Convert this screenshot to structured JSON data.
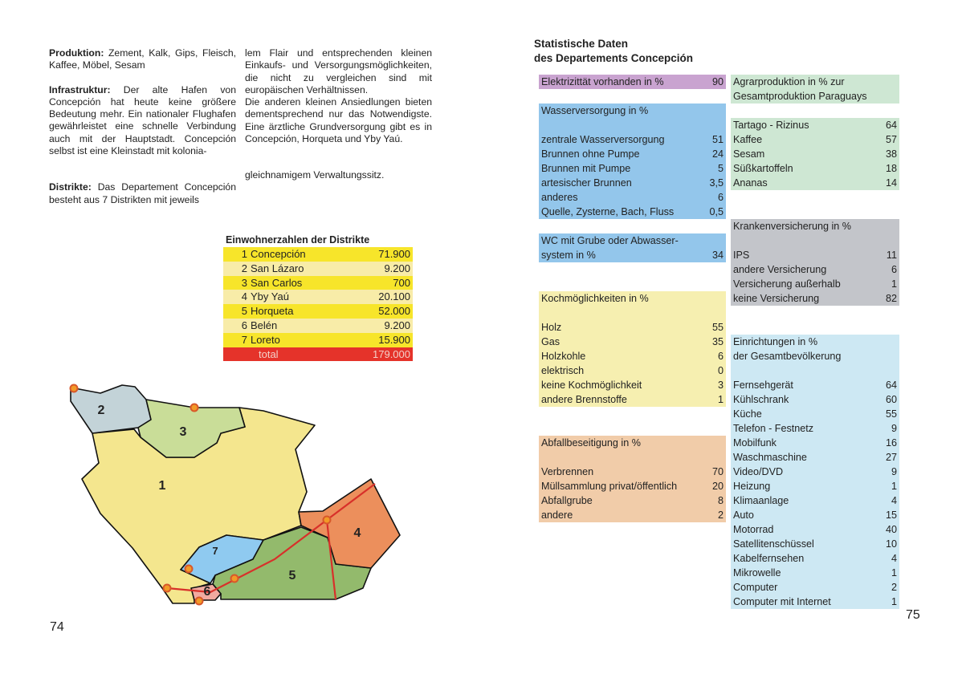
{
  "left_page": {
    "col1": {
      "produktion_label": "Produktion:",
      "produktion_text": " Zement, Kalk, Gips, Fleisch, Kaffee, Möbel, Sesam",
      "infrastruktur_label": "Infrastruktur:",
      "infrastruktur_text": " Der alte Hafen von Concepción hat heute keine größere Bedeutung mehr. Ein nationaler Flughafen gewährleistet eine schnelle Verbindung auch mit der Hauptstadt. Concepción selbst ist eine Kleinstadt mit kolonia-",
      "distrikte_label": "Distrikte:",
      "distrikte_text": " Das Departement Concepción besteht aus 7 Distrikten mit jeweils"
    },
    "col2": {
      "para1": "lem Flair und entsprechenden kleinen Einkaufs- und Versorgungsmöglichkeiten, die nicht zu vergleichen sind mit europäischen Verhältnissen.",
      "para2": "Die anderen kleinen Ansiedlungen bieten dementsprechend nur das Notwendigste. Eine ärztliche Grundversorgung gibt es in Concepción, Horqueta und Yby Yaú.",
      "para3": "gleichnamigem Verwaltungssitz."
    },
    "population_table": {
      "title": "Einwohnerzahlen der Distrikte",
      "rows": [
        {
          "num": "1",
          "name": "Concepción",
          "value": "71.900"
        },
        {
          "num": "2",
          "name": "San Lázaro",
          "value": "9.200"
        },
        {
          "num": "3",
          "name": "San Carlos",
          "value": "700"
        },
        {
          "num": "4",
          "name": "Yby Yaú",
          "value": "20.100"
        },
        {
          "num": "5",
          "name": "Horqueta",
          "value": "52.000"
        },
        {
          "num": "6",
          "name": "Belén",
          "value": "9.200"
        },
        {
          "num": "7",
          "name": "Loreto",
          "value": "15.900"
        }
      ],
      "total_label": "total",
      "total_value": "179.000",
      "colors": {
        "strong": "#f7e52a",
        "light": "#f8eca8",
        "total": "#e5332a"
      }
    },
    "map": {
      "labels": [
        "1",
        "2",
        "3",
        "4",
        "5",
        "6",
        "7"
      ],
      "colors": {
        "1": "#f4e68e",
        "2": "#c3d3d8",
        "3": "#c9dd98",
        "4": "#ec8f5c",
        "5": "#93ba6c",
        "6": "#f1aaa0",
        "7": "#8fcaf0",
        "road": "#d8302a",
        "town": "#f29a27"
      }
    },
    "page_number": "74"
  },
  "right_page": {
    "title_line1": "Statistische Daten",
    "title_line2": "des Departements Concepción",
    "elektrizitaet": {
      "label": "Elektrizittät vorhanden in %",
      "value": "90",
      "color": "#c9a3d0"
    },
    "wasser": {
      "header": "Wasserversorgung in  %",
      "color": "#93c6eb",
      "items": [
        {
          "label": "zentrale Wasserversorgung",
          "value": "51"
        },
        {
          "label": "Brunnen ohne Pumpe",
          "value": "24"
        },
        {
          "label": "Brunnen mit Pumpe",
          "value": "5"
        },
        {
          "label": "artesischer Brunnen",
          "value": "3,5"
        },
        {
          "label": "anderes",
          "value": "6"
        },
        {
          "label": "Quelle, Zysterne, Bach, Fluss",
          "value": "0,5"
        }
      ]
    },
    "wc": {
      "line1": "WC mit Grube oder Abwasser-",
      "line2": "system in %",
      "value": "34",
      "color": "#93c6eb"
    },
    "koch": {
      "header": "Kochmöglichkeiten in %",
      "color": "#f6efb0",
      "items": [
        {
          "label": "Holz",
          "value": "55"
        },
        {
          "label": "Gas",
          "value": "35"
        },
        {
          "label": "Holzkohle",
          "value": "6"
        },
        {
          "label": "elektrisch",
          "value": "0"
        },
        {
          "label": "keine Kochmöglichkeit",
          "value": "3"
        },
        {
          "label": "andere Brennstoffe",
          "value": "1"
        }
      ]
    },
    "abfall": {
      "header": "Abfallbeseitigung in %",
      "color": "#f1cca9",
      "items": [
        {
          "label": "Verbrennen",
          "value": "70"
        },
        {
          "label": "Müllsammlung privat/öffentlich",
          "value": "20"
        },
        {
          "label": "Abfallgrube",
          "value": "8"
        },
        {
          "label": "andere",
          "value": "2"
        }
      ]
    },
    "agrar": {
      "header1": "Agrarproduktion in % zur",
      "header2": "Gesamtproduktion Paraguays",
      "color": "#cee7d3",
      "items": [
        {
          "label": "Tartago - Rizinus",
          "value": "64"
        },
        {
          "label": "Kaffee",
          "value": "57"
        },
        {
          "label": "Sesam",
          "value": "38"
        },
        {
          "label": "Süßkartoffeln",
          "value": "18"
        },
        {
          "label": "Ananas",
          "value": "14"
        }
      ]
    },
    "kranken": {
      "header": "Krankenversicherung in %",
      "color": "#c3c5ca",
      "items": [
        {
          "label": "IPS",
          "value": "11"
        },
        {
          "label": "andere Versicherung",
          "value": "6"
        },
        {
          "label": "Versicherung außerhalb",
          "value": "1"
        },
        {
          "label": "keine Versicherung",
          "value": "82"
        }
      ]
    },
    "einrichtungen": {
      "header1": "Einrichtungen in %",
      "header2": "der Gesamtbevölkerung",
      "color": "#cde8f3",
      "items": [
        {
          "label": "Fernsehgerät",
          "value": "64"
        },
        {
          "label": "Kühlschrank",
          "value": "60"
        },
        {
          "label": "Küche",
          "value": "55"
        },
        {
          "label": "Telefon - Festnetz",
          "value": "9"
        },
        {
          "label": "Mobilfunk",
          "value": "16"
        },
        {
          "label": "Waschmaschine",
          "value": "27"
        },
        {
          "label": "Video/DVD",
          "value": "9"
        },
        {
          "label": "Heizung",
          "value": "1"
        },
        {
          "label": "Klimaanlage",
          "value": "4"
        },
        {
          "label": "Auto",
          "value": "15"
        },
        {
          "label": "Motorrad",
          "value": "40"
        },
        {
          "label": "Satellitenschüssel",
          "value": "10"
        },
        {
          "label": "Kabelfernsehen",
          "value": "4"
        },
        {
          "label": "Mikrowelle",
          "value": "1"
        },
        {
          "label": "Computer",
          "value": "2"
        },
        {
          "label": "Computer mit Internet",
          "value": "1"
        }
      ]
    },
    "page_number": "75"
  }
}
